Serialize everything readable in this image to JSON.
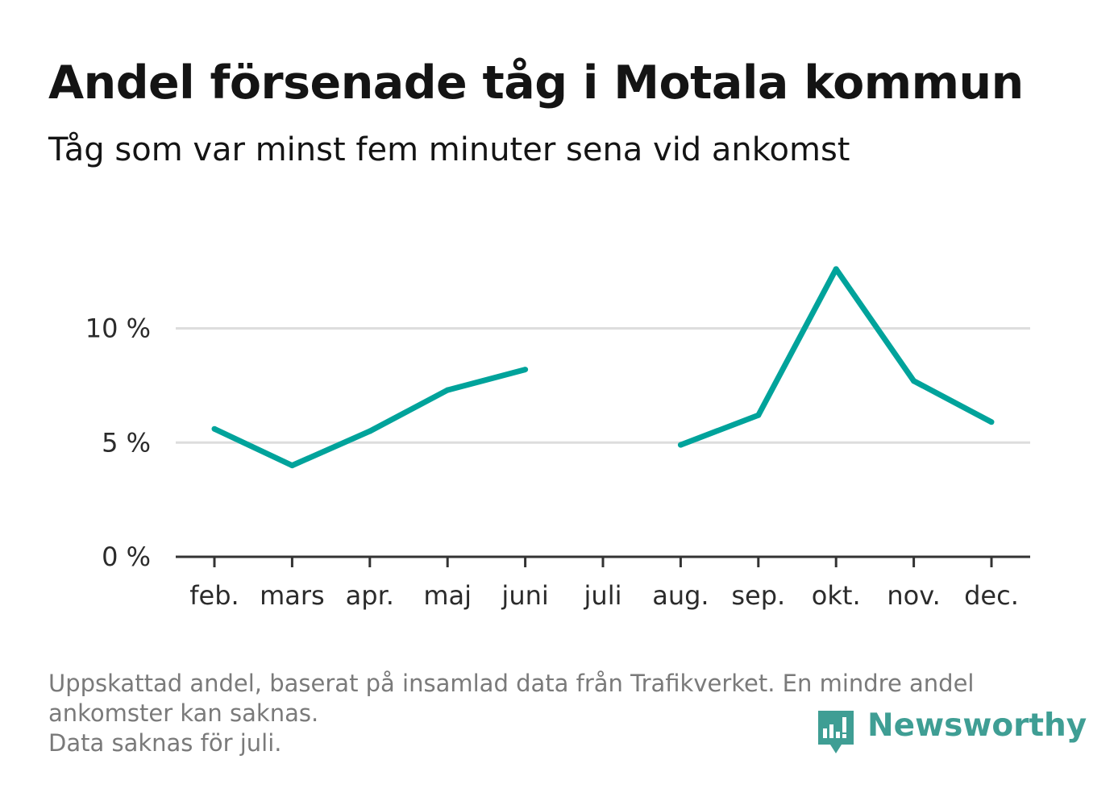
{
  "title": "Andel försenade tåg i Motala kommun",
  "subtitle": "Tåg som var minst fem minuter sena vid ankomst",
  "footnote": {
    "line1": "Uppskattad andel, baserat på insamlad data från Trafikverket. En mindre andel",
    "line2": "ankomster kan saknas.",
    "line3": "Data saknas för juli."
  },
  "brand": {
    "name": "Newsworthy",
    "icon": "newsworthy-logo-icon",
    "color": "#3f9e94"
  },
  "chart_data": {
    "type": "line",
    "title": "Andel försenade tåg i Motala kommun",
    "subtitle": "Tåg som var minst fem minuter sena vid ankomst",
    "categories": [
      "feb.",
      "mars",
      "apr.",
      "maj",
      "juni",
      "juli",
      "aug.",
      "sep.",
      "okt.",
      "nov.",
      "dec."
    ],
    "series": [
      {
        "values": [
          5.6,
          4.0,
          5.5,
          7.3,
          8.2,
          null,
          4.9,
          6.2,
          12.6,
          7.7,
          5.9
        ],
        "color": "#00a39b"
      }
    ],
    "y_ticks": [
      0,
      5,
      10
    ],
    "y_tick_labels": [
      "0 %",
      "5 %",
      "10 %"
    ],
    "ylim": [
      0,
      14.5
    ],
    "xlabel": "",
    "ylabel": "",
    "grid": true,
    "legend": "none"
  }
}
